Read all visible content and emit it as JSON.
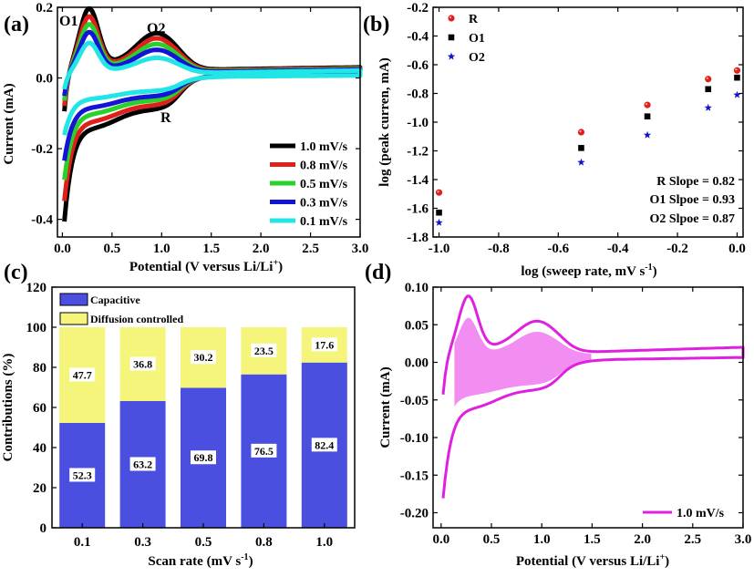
{
  "panel_labels": {
    "a": "(a)",
    "b": "(b)",
    "c": "(c)",
    "d": "(d)"
  },
  "chart_data": [
    {
      "panel": "a",
      "type": "line",
      "xlabel": "Potential (V versus Li/Li",
      "xlabel_sup": "+",
      "xlabel_end": ")",
      "ylabel": "Current (mA)",
      "xlim": [
        0,
        3.0
      ],
      "ylim": [
        -0.45,
        0.2
      ],
      "xticks": [
        0.0,
        0.5,
        1.0,
        1.5,
        2.0,
        2.5,
        3.0
      ],
      "xtick_labels": [
        "0.0",
        "0.5",
        "1.0",
        "1.5",
        "2.0",
        "2.5",
        "3.0"
      ],
      "yticks": [
        0.2,
        0.0,
        -0.2,
        -0.4
      ],
      "ytick_labels": [
        "0.2",
        "0.0",
        "-0.2",
        "-0.4"
      ],
      "annotations": [
        "O1",
        "O2",
        "R"
      ],
      "series": [
        {
          "name": "1.0 mV/s",
          "color": "#000000",
          "anodic_peak": 0.175,
          "o2_peak": 0.1,
          "cathodic_min": -0.41,
          "r_peak": -0.088
        },
        {
          "name": "0.8 mV/s",
          "color": "#e0201b",
          "anodic_peak": 0.155,
          "o2_peak": 0.088,
          "cathodic_min": -0.35,
          "r_peak": -0.076
        },
        {
          "name": "0.5 mV/s",
          "color": "#2bd12b",
          "anodic_peak": 0.135,
          "o2_peak": 0.074,
          "cathodic_min": -0.29,
          "r_peak": -0.062
        },
        {
          "name": "0.3 mV/s",
          "color": "#1414d4",
          "anodic_peak": 0.115,
          "o2_peak": 0.06,
          "cathodic_min": -0.235,
          "r_peak": -0.05
        },
        {
          "name": "0.1 mV/s",
          "color": "#22e6e6",
          "anodic_peak": 0.088,
          "o2_peak": 0.04,
          "cathodic_min": -0.16,
          "r_peak": -0.035
        }
      ]
    },
    {
      "panel": "b",
      "type": "scatter",
      "xlabel": "log (sweep rate, mV s",
      "xlabel_sup": "-1",
      "xlabel_end": ")",
      "ylabel": "log (peak curren, mA)",
      "xlim": [
        -1.02,
        0.02
      ],
      "ylim": [
        -1.8,
        -0.2
      ],
      "xticks": [
        -1.0,
        -0.8,
        -0.6,
        -0.4,
        -0.2,
        0.0
      ],
      "xtick_labels": [
        "-1.0",
        "-0.8",
        "-0.6",
        "-0.4",
        "-0.2",
        "0.0"
      ],
      "yticks": [
        -0.2,
        -0.4,
        -0.6,
        -0.8,
        -1.0,
        -1.2,
        -1.4,
        -1.6,
        -1.8
      ],
      "ytick_labels": [
        "-0.2",
        "-0.4",
        "-0.6",
        "-0.8",
        "-1.0",
        "-1.2",
        "-1.4",
        "-1.6",
        "-1.8"
      ],
      "x": [
        -1.0,
        -0.523,
        -0.301,
        -0.097,
        0.0
      ],
      "series": [
        {
          "name": "R",
          "color": "#e0201b",
          "marker": "circle",
          "values": [
            -1.49,
            -1.07,
            -0.88,
            -0.7,
            -0.64
          ]
        },
        {
          "name": "O1",
          "color": "#000000",
          "marker": "square",
          "values": [
            -1.63,
            -1.18,
            -0.96,
            -0.77,
            -0.69
          ]
        },
        {
          "name": "O2",
          "color": "#1414c8",
          "marker": "star",
          "values": [
            -1.7,
            -1.28,
            -1.09,
            -0.9,
            -0.81
          ]
        }
      ],
      "annotations": [
        "R Slope = 0.82",
        "O1 Slpoe = 0.93",
        "O2 Slpoe = 0.87"
      ]
    },
    {
      "panel": "c",
      "type": "bar",
      "xlabel": "Scan rate (mV s",
      "xlabel_sup": "-1",
      "xlabel_end": ")",
      "ylabel": "Contributions (%)",
      "ylim": [
        0,
        120
      ],
      "yticks": [
        0,
        20,
        40,
        60,
        80,
        100,
        120
      ],
      "ytick_labels": [
        "0",
        "20",
        "40",
        "60",
        "80",
        "100",
        "120"
      ],
      "categories": [
        "0.1",
        "0.3",
        "0.5",
        "0.8",
        "1.0"
      ],
      "series": [
        {
          "name": "Capacitive",
          "color": "#4b4fe0",
          "values": [
            52.3,
            63.2,
            69.8,
            76.5,
            82.4
          ],
          "labels": [
            "52.3",
            "63.2",
            "69.8",
            "76.5",
            "82.4"
          ]
        },
        {
          "name": "Diffusion controlled",
          "color": "#f4f57a",
          "values": [
            47.7,
            36.8,
            30.2,
            23.5,
            17.6
          ],
          "labels": [
            "47.7",
            "36.8",
            "30.2",
            "23.5",
            "17.6"
          ]
        }
      ]
    },
    {
      "panel": "d",
      "type": "area",
      "xlabel": "Potential (V versus Li/Li",
      "xlabel_sup": "+",
      "xlabel_end": ")",
      "ylabel": "Current (mA)",
      "xlim": [
        -0.08,
        3.0
      ],
      "ylim": [
        -0.22,
        0.1
      ],
      "xticks": [
        0.0,
        0.5,
        1.0,
        1.5,
        2.0,
        2.5,
        3.0
      ],
      "xtick_labels": [
        "0.0",
        "0.5",
        "1.0",
        "1.5",
        "2.0",
        "2.5",
        "3.0"
      ],
      "yticks": [
        0.1,
        0.05,
        0.0,
        -0.05,
        -0.1,
        -0.15,
        -0.2
      ],
      "ytick_labels": [
        "0.10",
        "0.05",
        "0.00",
        "-0.05",
        "-0.10",
        "-0.15",
        "-0.20"
      ],
      "legend": "1.0 mV/s",
      "line_color": "#e020e0",
      "fill_color": "#f28ef2"
    }
  ]
}
